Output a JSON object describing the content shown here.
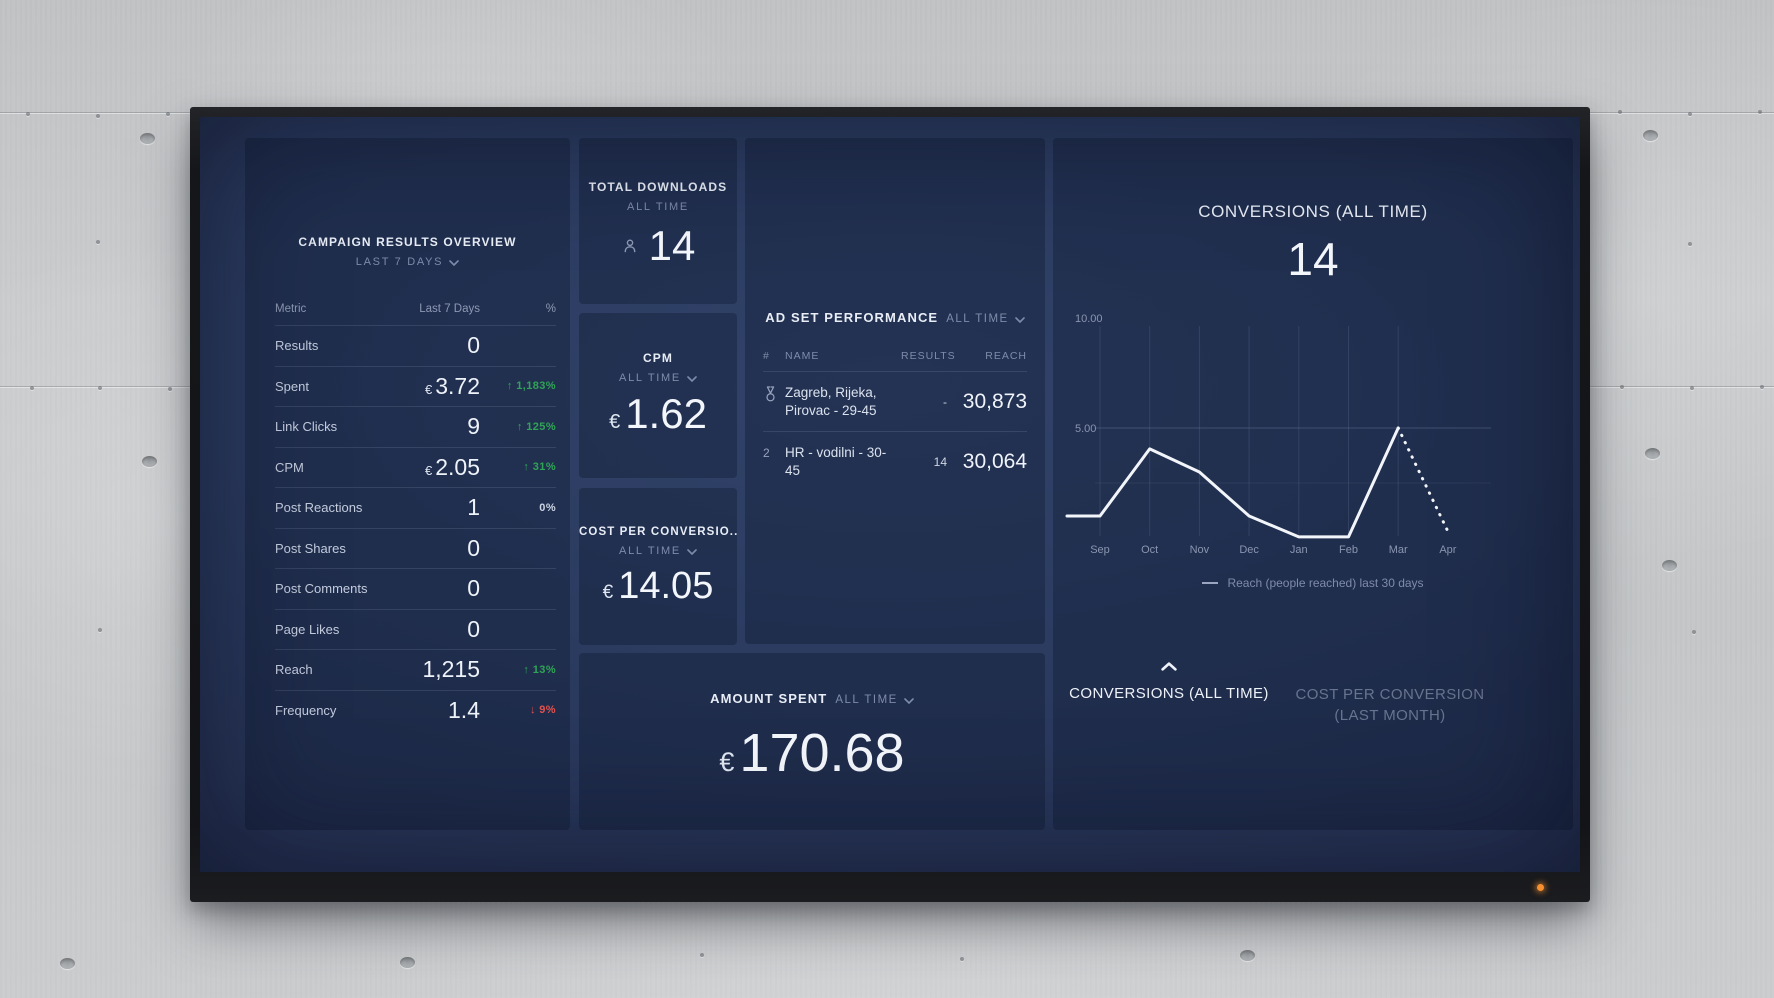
{
  "colors": {
    "positive": "#2fa456",
    "negative": "#e0524e",
    "chart_line": "#f2f5fa",
    "screen_background": "#293759",
    "card_background": "#223050",
    "led": "#f78f2e"
  },
  "dashboard": {
    "campaign_overview": {
      "title": "CAMPAIGN RESULTS OVERVIEW",
      "range_label": "LAST 7 DAYS",
      "columns": [
        "Metric",
        "Last 7 Days",
        "%"
      ],
      "rows": [
        {
          "metric": "Results",
          "value": "0"
        },
        {
          "metric": "Spent",
          "currency": "€",
          "value": "3.72",
          "change": "1,183%",
          "direction": "up"
        },
        {
          "metric": "Link Clicks",
          "value": "9",
          "change": "125%",
          "direction": "up"
        },
        {
          "metric": "CPM",
          "currency": "€",
          "value": "2.05",
          "change": "31%",
          "direction": "up"
        },
        {
          "metric": "Post Reactions",
          "value": "1",
          "change": "0%",
          "direction": "flat"
        },
        {
          "metric": "Post Shares",
          "value": "0"
        },
        {
          "metric": "Post Comments",
          "value": "0"
        },
        {
          "metric": "Page Likes",
          "value": "0"
        },
        {
          "metric": "Reach",
          "value": "1,215",
          "change": "13%",
          "direction": "up"
        },
        {
          "metric": "Frequency",
          "value": "1.4",
          "change": "9%",
          "direction": "down"
        }
      ]
    },
    "total_downloads": {
      "title": "TOTAL DOWNLOADS",
      "range_label": "ALL TIME",
      "value": "14",
      "icon": "user-icon"
    },
    "cpm": {
      "title": "CPM",
      "range_label": "ALL TIME",
      "currency": "€",
      "value": "1.62"
    },
    "cost_per_conversion": {
      "title": "COST PER CONVERSIO..",
      "range_label": "ALL TIME",
      "currency": "€",
      "value": "14.05"
    },
    "ad_set_performance": {
      "title": "AD SET PERFORMANCE",
      "range_label": "ALL TIME",
      "columns": [
        "#",
        "NAME",
        "RESULTS",
        "REACH"
      ],
      "rows": [
        {
          "rank": "1",
          "rank_icon": "medal-icon",
          "name": "Zagreb, Rijeka, Pirovac - 29-45",
          "results": "-",
          "reach": "30,873"
        },
        {
          "rank": "2",
          "name": "HR - vodilni - 30-45",
          "results": "14",
          "reach": "30,064"
        }
      ]
    },
    "amount_spent": {
      "title": "AMOUNT SPENT",
      "range_label": "ALL TIME",
      "currency": "€",
      "value": "170.68"
    },
    "conversions": {
      "title": "CONVERSIONS (ALL TIME)",
      "value": "14",
      "legend": "Reach (people reached) last 30 days",
      "tabs": [
        {
          "label": "CONVERSIONS (ALL TIME)",
          "active": true
        },
        {
          "label": "COST PER CONVERSION (LAST MONTH)",
          "active": false
        }
      ]
    }
  },
  "chart_data": {
    "type": "line",
    "title": "CONVERSIONS (ALL TIME)",
    "x": [
      "Sep",
      "Oct",
      "Nov",
      "Dec",
      "Jan",
      "Feb",
      "Mar",
      "Apr"
    ],
    "series": [
      {
        "name": "Reach (people reached) last 30 days",
        "values": [
          1,
          4.05,
          3,
          1,
          0.05,
          0.05,
          5,
          0.3
        ],
        "pre_start_value": 1,
        "dotted_last_segment": true
      }
    ],
    "ylim": [
      0,
      10
    ],
    "yticks": [
      10,
      5
    ],
    "ytick_labels": [
      "10.00",
      "5.00"
    ],
    "grid": true,
    "legend_position": "bottom"
  }
}
